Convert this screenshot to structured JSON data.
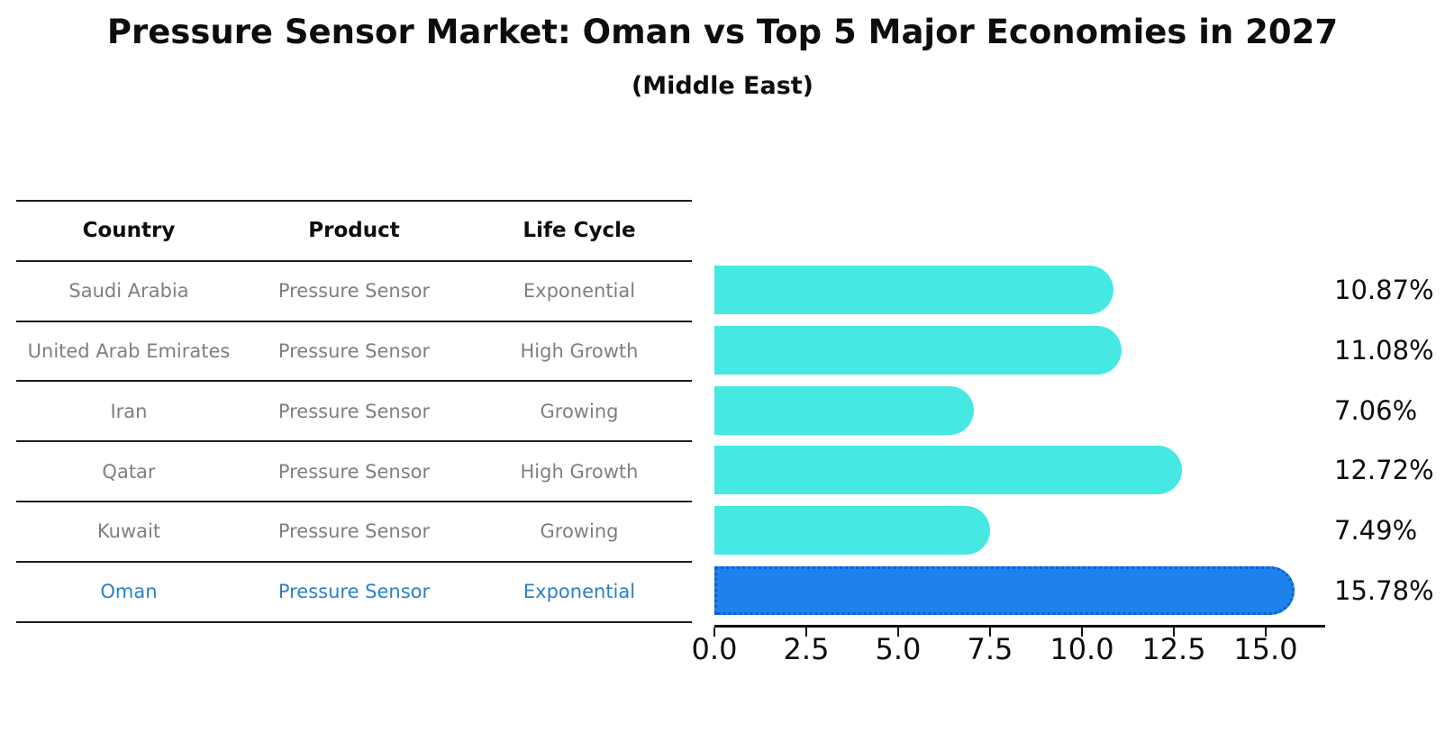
{
  "title": "Pressure Sensor Market: Oman vs Top 5 Major Economies in 2027",
  "subtitle": "(Middle East)",
  "table": {
    "headers": [
      "Country",
      "Product",
      "Life Cycle"
    ],
    "rows": [
      {
        "country": "Saudi Arabia",
        "product": "Pressure Sensor",
        "life_cycle": "Exponential",
        "highlight": false
      },
      {
        "country": "United Arab Emirates",
        "product": "Pressure Sensor",
        "life_cycle": "High Growth",
        "highlight": false
      },
      {
        "country": "Iran",
        "product": "Pressure Sensor",
        "life_cycle": "Growing",
        "highlight": false
      },
      {
        "country": "Qatar",
        "product": "Pressure Sensor",
        "life_cycle": "High Growth",
        "highlight": false
      },
      {
        "country": "Kuwait",
        "product": "Pressure Sensor",
        "life_cycle": "Growing",
        "highlight": false
      },
      {
        "country": "Oman",
        "product": "Pressure Sensor",
        "life_cycle": "Exponential",
        "highlight": true
      }
    ]
  },
  "chart_data": {
    "type": "bar",
    "orientation": "horizontal",
    "title": "Pressure Sensor Market: Oman vs Top 5 Major Economies in 2027",
    "subtitle": "(Middle East)",
    "categories": [
      "Saudi Arabia",
      "United Arab Emirates",
      "Iran",
      "Qatar",
      "Kuwait",
      "Oman"
    ],
    "values": [
      10.87,
      11.08,
      7.06,
      12.72,
      7.49,
      15.78
    ],
    "value_labels": [
      "10.87%",
      "11.08%",
      "7.06%",
      "12.72%",
      "7.49%",
      "15.78%"
    ],
    "unit": "%",
    "highlight_index": 5,
    "xlim": [
      0,
      16.57
    ],
    "xticks": [
      0,
      2.5,
      5,
      7.5,
      10,
      12.5,
      15
    ],
    "xtick_labels": [
      "0.0",
      "2.5",
      "5.0",
      "7.5",
      "10.0",
      "12.5",
      "15.0"
    ],
    "grid": false,
    "legend": null,
    "colors": {
      "bar": "#45e8e3",
      "highlight_bar": "#1e82ec",
      "highlight_bar_border": "#0c5fd6",
      "highlight_text": "#2a80c8",
      "table_text": "#7f7f7f",
      "axis": "#111111"
    }
  }
}
